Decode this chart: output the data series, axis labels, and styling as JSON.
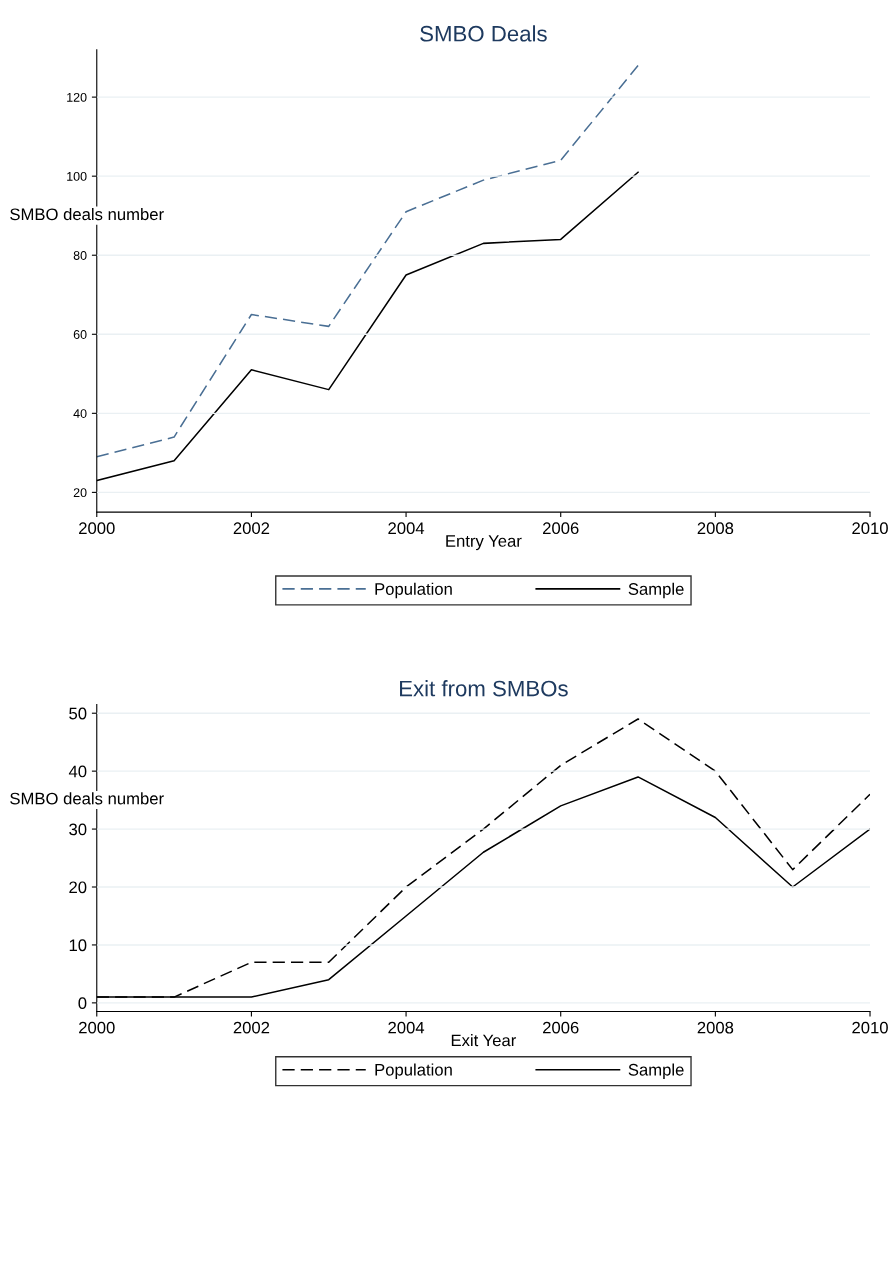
{
  "chart_data": [
    {
      "type": "line",
      "title": "SMBO Deals",
      "xlabel": "Entry Year",
      "ylabel": "SMBO deals number",
      "x": [
        2000,
        2001,
        2002,
        2003,
        2004,
        2005,
        2006,
        2007
      ],
      "series": [
        {
          "name": "Population",
          "color": "#4a6f94",
          "line_style": "dashed",
          "values": [
            29,
            34,
            65,
            62,
            91,
            99,
            104,
            128
          ]
        },
        {
          "name": "Sample",
          "color": "#000000",
          "line_style": "solid",
          "values": [
            23,
            28,
            51,
            46,
            75,
            83,
            84,
            101
          ]
        }
      ],
      "xlim": [
        2000,
        2010
      ],
      "xticks": [
        2000,
        2002,
        2004,
        2006,
        2008,
        2010
      ],
      "ylim": [
        15,
        132
      ],
      "yticks": [
        20,
        40,
        60,
        80,
        100,
        120
      ],
      "grid": "y",
      "legend": "bottom",
      "marker": "none"
    },
    {
      "type": "line",
      "title": "Exit from SMBOs",
      "xlabel": "Exit Year",
      "ylabel": "SMBO deals number",
      "x": [
        2000,
        2001,
        2002,
        2003,
        2004,
        2005,
        2006,
        2007,
        2008,
        2009,
        2010
      ],
      "series": [
        {
          "name": "Population",
          "color": "#000000",
          "line_style": "dashed",
          "values": [
            1,
            1,
            7,
            7,
            20,
            30,
            41,
            49,
            40,
            23,
            36
          ]
        },
        {
          "name": "Sample",
          "color": "#000000",
          "line_style": "solid",
          "values": [
            1,
            1,
            1,
            4,
            15,
            26,
            34,
            39,
            32,
            20,
            30
          ]
        }
      ],
      "xlim": [
        2000,
        2010
      ],
      "xticks": [
        2000,
        2002,
        2004,
        2006,
        2008,
        2010
      ],
      "ylim": [
        -1.5,
        51.5
      ],
      "yticks": [
        0,
        10,
        20,
        30,
        40,
        50
      ],
      "grid": "y",
      "legend": "bottom",
      "marker": "none"
    }
  ]
}
